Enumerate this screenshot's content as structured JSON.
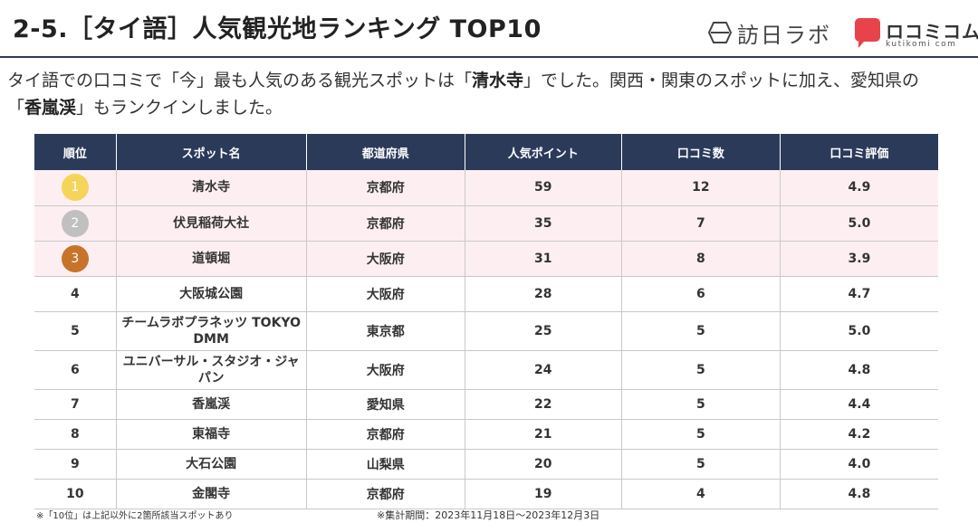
{
  "header": {
    "title": "2-5.［タイ語］人気観光地ランキング TOP10",
    "logo1_text": "訪日ラボ",
    "logo2_name": "ロコミコム",
    "logo2_sub": "kutikomi com"
  },
  "lead": {
    "p1": "タイ語での口コミで「今」最も人気のある観光スポットは「",
    "p1_bold": "清水寺",
    "p2": "」でした。関西・関東のスポットに加え、愛知県の",
    "p3": "「",
    "p3_bold": "香嵐渓",
    "p4": "」もランクインしました。"
  },
  "table": {
    "headers": [
      "順位",
      "スポット名",
      "都道府県",
      "人気ポイント",
      "口コミ数",
      "口コミ評価"
    ],
    "rows": [
      {
        "rank": "1",
        "spot": "清水寺",
        "pref": "京都府",
        "points": "59",
        "count": "12",
        "rating": "4.9"
      },
      {
        "rank": "2",
        "spot": "伏見稲荷大社",
        "pref": "京都府",
        "points": "35",
        "count": "7",
        "rating": "5.0"
      },
      {
        "rank": "3",
        "spot": "道頓堀",
        "pref": "大阪府",
        "points": "31",
        "count": "8",
        "rating": "3.9"
      },
      {
        "rank": "4",
        "spot": "大阪城公園",
        "pref": "大阪府",
        "points": "28",
        "count": "6",
        "rating": "4.7"
      },
      {
        "rank": "5",
        "spot": "チームラボプラネッツ TOKYO DMM",
        "pref": "東京都",
        "points": "25",
        "count": "5",
        "rating": "5.0"
      },
      {
        "rank": "6",
        "spot": "ユニバーサル・スタジオ・ジャパン",
        "pref": "大阪府",
        "points": "24",
        "count": "5",
        "rating": "4.8"
      },
      {
        "rank": "7",
        "spot": "香嵐渓",
        "pref": "愛知県",
        "points": "22",
        "count": "5",
        "rating": "4.4"
      },
      {
        "rank": "8",
        "spot": "東福寺",
        "pref": "京都府",
        "points": "21",
        "count": "5",
        "rating": "4.2"
      },
      {
        "rank": "9",
        "spot": "大石公園",
        "pref": "山梨県",
        "points": "20",
        "count": "5",
        "rating": "4.0"
      },
      {
        "rank": "10",
        "spot": "金閣寺",
        "pref": "京都府",
        "points": "19",
        "count": "4",
        "rating": "4.8"
      }
    ],
    "medal_colors": [
      "#f5d45a",
      "#c0c0c0",
      "#c7742a"
    ]
  },
  "footnotes": {
    "left": "※「10位」は上記以外に2箇所該当スポットあり",
    "right": "※集計期間：2023年11月18日～2023年12月3日"
  }
}
